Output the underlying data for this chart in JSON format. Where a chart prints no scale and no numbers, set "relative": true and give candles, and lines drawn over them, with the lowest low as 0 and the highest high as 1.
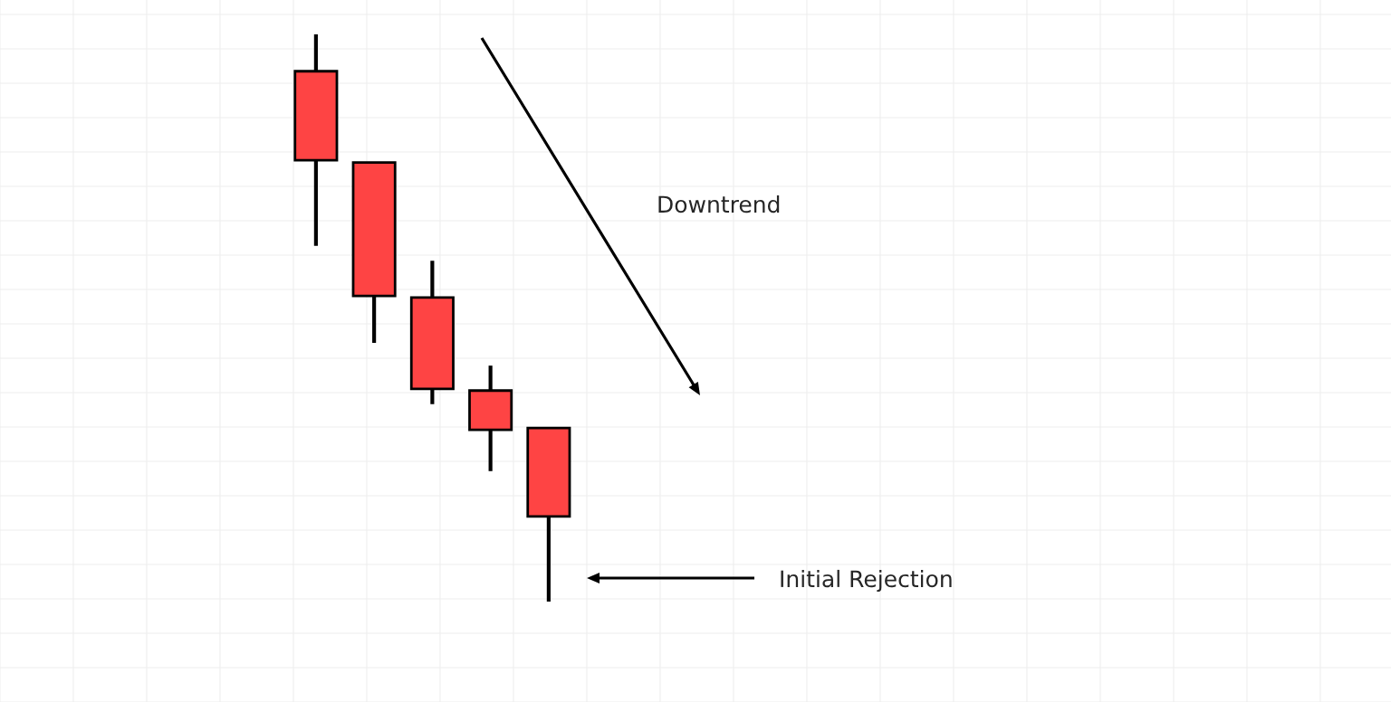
{
  "chart_data": {
    "type": "candlestick",
    "relative": true,
    "grid": true,
    "color": "#fe4444",
    "categories": [
      null,
      null,
      null,
      null,
      null
    ],
    "ohlc": [
      [
        0.935,
        1.0,
        0.627,
        0.778
      ],
      [
        0.774,
        0.774,
        0.456,
        0.539
      ],
      [
        0.536,
        0.601,
        0.348,
        0.375
      ],
      [
        0.372,
        0.416,
        0.23,
        0.303
      ],
      [
        0.306,
        0.306,
        0.0,
        0.15
      ]
    ],
    "annotations": [
      "Downtrend",
      "Initial Rejection"
    ]
  }
}
